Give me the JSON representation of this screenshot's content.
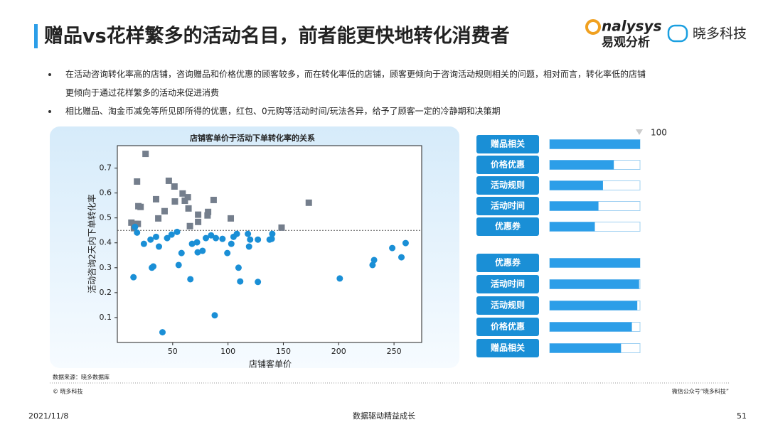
{
  "header": {
    "title": "赠品vs花样繁多的活动名目，前者能更快地转化消费者",
    "logos": [
      "nalysys",
      "易观分析",
      "晓多科技"
    ]
  },
  "bullets": [
    "在活动咨询转化率高的店铺，咨询赠品和价格优惠的顾客较多，而在转化率低的店铺，顾客更倾向于咨询活动规则相关的问题，相对而言，转化率低的店铺",
    "更倾向于通过花样繁多的活动来促进消费",
    "相比赠品、淘金币减免等所见即所得的优惠，红包、0元购等活动时间/玩法各异，给予了顾客一定的冷静期和决策期"
  ],
  "chart_data": [
    {
      "type": "scatter",
      "title": "店铺客单价于活动下单转化率的关系",
      "x_label": "店铺客单价",
      "y_label": "活动咨询2天内下单转化率",
      "xlim": [
        0,
        275
      ],
      "ylim": [
        0,
        0.79
      ],
      "xticks": [
        50,
        100,
        150,
        200,
        250
      ],
      "yticks": [
        0.1,
        0.2,
        0.3,
        0.4,
        0.5,
        0.6,
        0.7
      ],
      "reference_line": 0.45,
      "series": [
        {
          "color": "#747e8c",
          "marker": "square",
          "x": [
            25.5,
            17.8,
            35,
            46.5,
            51.6,
            59,
            63.7,
            61,
            52,
            87,
            19,
            21,
            42.7,
            64.3,
            82,
            73,
            81.5,
            37,
            102.5,
            12.7,
            16.6,
            18.5,
            65.6,
            73,
            15,
            148.4,
            173
          ],
          "values": [
            0.757,
            0.646,
            0.575,
            0.649,
            0.626,
            0.598,
            0.583,
            0.569,
            0.566,
            0.572,
            0.547,
            0.544,
            0.527,
            0.538,
            0.524,
            0.513,
            0.51,
            0.498,
            0.498,
            0.481,
            0.476,
            0.476,
            0.467,
            0.484,
            0.459,
            0.461,
            0.561
          ]
        },
        {
          "color": "#1a8fd6",
          "marker": "circle",
          "x": [
            14.6,
            16,
            17.8,
            24,
            30,
            35,
            31.2,
            32.5,
            37.6,
            40.8,
            45,
            49,
            54,
            55.4,
            58,
            66,
            67.5,
            72,
            72.6,
            77,
            80,
            84.7,
            89,
            88,
            95,
            99.4,
            103,
            105,
            108,
            109.5,
            111,
            118,
            119,
            120,
            127,
            127,
            137.6,
            140,
            139.5,
            201,
            230.6,
            232,
            248.4,
            256.7,
            260.5
          ],
          "values": [
            0.262,
            0.464,
            0.441,
            0.396,
            0.413,
            0.424,
            0.3,
            0.305,
            0.385,
            0.041,
            0.419,
            0.433,
            0.444,
            0.311,
            0.359,
            0.254,
            0.396,
            0.402,
            0.362,
            0.368,
            0.419,
            0.43,
            0.419,
            0.109,
            0.416,
            0.359,
            0.396,
            0.424,
            0.436,
            0.3,
            0.245,
            0.436,
            0.385,
            0.413,
            0.413,
            0.243,
            0.413,
            0.436,
            0.416,
            0.257,
            0.311,
            0.331,
            0.379,
            0.342,
            0.399
          ]
        }
      ]
    },
    {
      "type": "bar",
      "orientation": "horizontal",
      "categories": [
        "赠品相关",
        "价格优惠",
        "活动规则",
        "活动时间",
        "优惠券"
      ],
      "values": [
        100,
        71,
        59,
        54,
        50
      ],
      "color": "#2c9ee8",
      "xlim": [
        0,
        100
      ],
      "xticks": [
        100
      ]
    },
    {
      "type": "bar",
      "orientation": "horizontal",
      "categories": [
        "优惠券",
        "活动时间",
        "活动规则",
        "价格优惠",
        "赠品相关"
      ],
      "values": [
        100,
        99,
        97,
        91,
        79
      ],
      "color": "#2c9ee8",
      "xlim": [
        0,
        100
      ]
    }
  ],
  "footer": {
    "source": "数据来源：晓多数据库",
    "copyright": "© 晓多科技",
    "wechat": "微信公众号“晓多科技”",
    "date": "2021/11/8",
    "slogan": "数据驱动精益成长",
    "page": "51"
  }
}
